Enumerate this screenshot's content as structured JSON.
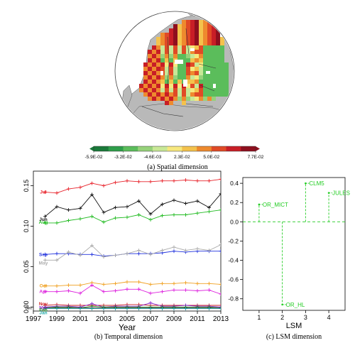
{
  "panels": {
    "a": {
      "caption": "(a) Spatial dimension"
    },
    "b": {
      "caption": "(b) Temporal dimension"
    },
    "c": {
      "caption": "(c) LSM dimension"
    }
  },
  "colorbar": {
    "tick_labels": [
      "-5.9E-02",
      "-3.2E-02",
      "-4.6E-03",
      "2.3E-02",
      "5.0E-02",
      "7.7E-02"
    ],
    "colors": [
      "#1a7a3a",
      "#2e9e4a",
      "#5bbd5b",
      "#96d27a",
      "#c8e896",
      "#f7e87e",
      "#f4c24c",
      "#ee8a2e",
      "#e04a26",
      "#c81e26",
      "#8e0f1e"
    ]
  },
  "chart_data": [
    {
      "type": "line",
      "panel": "b",
      "xlabel": "Year",
      "ylabel": "",
      "xlim": [
        1997,
        2013
      ],
      "ylim": [
        -0.005,
        0.168
      ],
      "x_ticks": [
        1997,
        1999,
        2001,
        2003,
        2005,
        2007,
        2009,
        2011,
        2013
      ],
      "y_ticks": [
        0.0,
        0.05,
        0.1,
        0.15
      ],
      "y_tick_labels": [
        "0.00",
        "0.05",
        "0.10",
        "0.15"
      ],
      "x": [
        1998,
        1999,
        2000,
        2001,
        2002,
        2003,
        2004,
        2005,
        2006,
        2007,
        2008,
        2009,
        2010,
        2011,
        2012,
        2013
      ],
      "series": [
        {
          "name": "Jul",
          "color": "#e8242c",
          "values": [
            0.142,
            0.141,
            0.146,
            0.148,
            0.153,
            0.15,
            0.154,
            0.156,
            0.155,
            0.155,
            0.156,
            0.156,
            0.157,
            0.156,
            0.156,
            0.158
          ]
        },
        {
          "name": "Jun",
          "color": "#111111",
          "values": [
            0.112,
            0.124,
            0.12,
            0.122,
            0.139,
            0.117,
            0.123,
            0.124,
            0.131,
            0.115,
            0.127,
            0.132,
            0.128,
            0.131,
            0.123,
            0.14
          ]
        },
        {
          "name": "Aug",
          "color": "#22bb22",
          "values": [
            0.104,
            0.104,
            0.107,
            0.109,
            0.112,
            0.105,
            0.11,
            0.111,
            0.114,
            0.108,
            0.113,
            0.114,
            0.114,
            0.116,
            0.118,
            0.12
          ]
        },
        {
          "name": "Sep",
          "color": "#2233dd",
          "values": [
            0.065,
            0.066,
            0.066,
            0.065,
            0.065,
            0.063,
            0.064,
            0.066,
            0.066,
            0.066,
            0.067,
            0.069,
            0.068,
            0.069,
            0.069,
            0.069
          ]
        },
        {
          "name": "May",
          "color": "#aaaaaa",
          "values": [
            0.058,
            0.058,
            0.068,
            0.064,
            0.076,
            0.062,
            0.064,
            0.066,
            0.07,
            0.065,
            0.07,
            0.074,
            0.07,
            0.072,
            0.07,
            0.077
          ]
        },
        {
          "name": "Oct",
          "color": "#f0a020",
          "values": [
            0.026,
            0.026,
            0.027,
            0.027,
            0.03,
            0.028,
            0.029,
            0.031,
            0.031,
            0.028,
            0.029,
            0.029,
            0.03,
            0.029,
            0.029,
            0.028
          ]
        },
        {
          "name": "Apr",
          "color": "#dd22dd",
          "values": [
            0.019,
            0.019,
            0.02,
            0.017,
            0.027,
            0.019,
            0.02,
            0.022,
            0.022,
            0.017,
            0.019,
            0.021,
            0.021,
            0.02,
            0.021,
            0.016
          ]
        },
        {
          "name": "Nov",
          "color": "#cc2222",
          "values": [
            0.002,
            0.003,
            0.002,
            0.002,
            0.002,
            0.002,
            0.002,
            0.003,
            0.003,
            0.002,
            0.002,
            0.002,
            0.002,
            0.002,
            0.002,
            0.002
          ]
        },
        {
          "name": "Mar",
          "color": "#8822cc",
          "values": [
            0.0,
            0.001,
            0.001,
            0.0,
            0.004,
            0.0,
            0.001,
            0.001,
            0.001,
            0.005,
            0.001,
            0.001,
            0.002,
            0.001,
            0.001,
            0.0
          ]
        },
        {
          "name": "Feb",
          "color": "#228822",
          "values": [
            -0.001,
            0.0,
            0.0,
            -0.001,
            0.001,
            0.0,
            0.0,
            0.0,
            0.0,
            0.0,
            0.0,
            0.0,
            0.0,
            0.0,
            0.0,
            -0.001
          ]
        },
        {
          "name": "Dec",
          "color": "#333333",
          "values": [
            -0.001,
            -0.001,
            -0.001,
            -0.001,
            -0.001,
            -0.001,
            -0.001,
            -0.001,
            -0.001,
            -0.001,
            -0.001,
            -0.001,
            -0.001,
            -0.001,
            -0.001,
            -0.001
          ]
        },
        {
          "name": "Jan",
          "color": "#22aaaa",
          "values": [
            -0.002,
            -0.002,
            -0.002,
            -0.002,
            -0.002,
            -0.002,
            -0.002,
            -0.002,
            -0.002,
            -0.002,
            -0.002,
            -0.002,
            -0.002,
            -0.002,
            -0.002,
            -0.002
          ]
        }
      ],
      "series_labels": [
        "Jul",
        "Jun",
        "Aug",
        "Sep",
        "May",
        "Oct",
        "Apr",
        "Nov",
        "Mar",
        "Feb",
        "Jan"
      ],
      "left_stub_label": "Dec"
    },
    {
      "type": "scatter",
      "panel": "c",
      "xlabel": "LSM",
      "xlim": [
        0.3,
        4.7
      ],
      "ylim": [
        -0.92,
        0.46
      ],
      "x_ticks": [
        1,
        2,
        3,
        4
      ],
      "x_tick_labels": [
        "1",
        "2",
        "3",
        "4"
      ],
      "y_ticks": [
        -0.8,
        -0.6,
        -0.4,
        -0.2,
        0.0,
        0.2,
        0.4
      ],
      "y_tick_labels": [
        "-0.8",
        "-0.6",
        "-0.4",
        "-0.2",
        "0.0",
        "0.2",
        "0.4"
      ],
      "color": "#22cc22",
      "points": [
        {
          "x": 1,
          "y": 0.18,
          "label": "OR_MICT"
        },
        {
          "x": 2,
          "y": -0.86,
          "label": "OR_HL"
        },
        {
          "x": 3,
          "y": 0.4,
          "label": "CLM5"
        },
        {
          "x": 4,
          "y": 0.3,
          "label": "JULES"
        }
      ]
    }
  ]
}
